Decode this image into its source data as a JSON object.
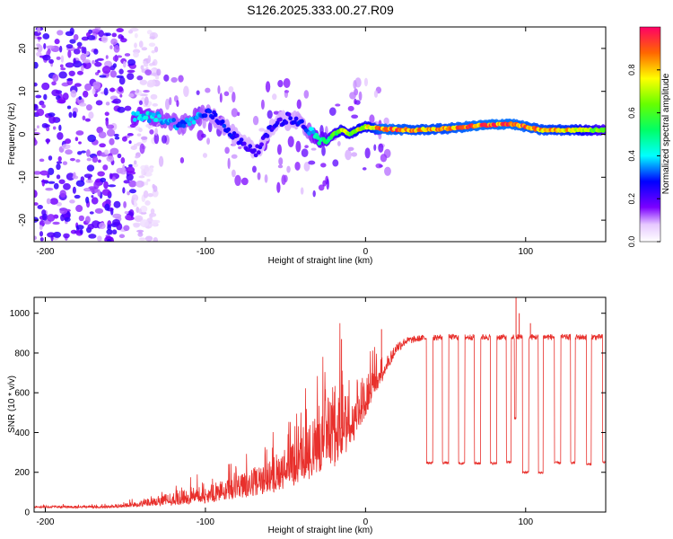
{
  "title": "S126.2025.333.00.27.R09",
  "chart_data": [
    {
      "id": "spectrogram",
      "type": "heatmap",
      "xlabel": "Height of straight line (km)",
      "ylabel": "Frequency (Hz)",
      "xlim": [
        -207,
        150
      ],
      "ylim": [
        -25,
        25
      ],
      "xticks": [
        -200,
        -100,
        0,
        100
      ],
      "yticks": [
        -20,
        -10,
        0,
        10,
        20
      ],
      "colorbar": {
        "label": "Normalized spectral amplitude",
        "range": [
          0,
          1
        ],
        "ticks": [
          0.0,
          0.2,
          0.4,
          0.6,
          0.8
        ],
        "tick_labels": [
          "0.0",
          "0.2",
          "0.4",
          "0.6",
          "0.8"
        ]
      },
      "ridge": {
        "x": [
          -145,
          -130,
          -115,
          -105,
          -97,
          -88,
          -78,
          -68,
          -58,
          -48,
          -38,
          -30,
          -25,
          -20,
          -15,
          -10,
          -5,
          0,
          10,
          30,
          50,
          70,
          90,
          110,
          130,
          150
        ],
        "freq": [
          4,
          4,
          2,
          4,
          5,
          2,
          -2,
          -4,
          2,
          4,
          2,
          -1,
          -2,
          0,
          1,
          0,
          1,
          1.8,
          1.2,
          1,
          1.3,
          2,
          2.5,
          1,
          1,
          1
        ],
        "amplitude": [
          0.45,
          0.4,
          0.35,
          0.4,
          0.3,
          0.3,
          0.25,
          0.25,
          0.25,
          0.25,
          0.3,
          0.5,
          0.55,
          0.6,
          0.75,
          0.7,
          0.8,
          0.75,
          0.95,
          0.9,
          0.9,
          0.95,
          0.95,
          0.9,
          0.85,
          0.6
        ]
      },
      "noise_region_x": [
        -207,
        -145
      ]
    },
    {
      "id": "snr",
      "type": "line",
      "xlabel": "Height of straight line (km)",
      "ylabel": "SNR (10 * v/v)",
      "xlim": [
        -207,
        150
      ],
      "ylim": [
        0,
        1080
      ],
      "xticks": [
        -200,
        -100,
        0,
        100
      ],
      "yticks": [
        0,
        200,
        400,
        600,
        800,
        1000
      ],
      "color": "#e8302c",
      "envelope": {
        "x": [
          -207,
          -160,
          -145,
          -120,
          -100,
          -80,
          -60,
          -40,
          -30,
          -20,
          -15,
          -10,
          -5,
          0,
          5,
          10,
          15,
          20,
          25,
          35,
          50,
          150
        ],
        "mean": [
          25,
          25,
          35,
          60,
          80,
          110,
          160,
          230,
          320,
          380,
          420,
          440,
          500,
          560,
          630,
          700,
          760,
          830,
          860,
          875,
          880,
          880
        ],
        "spread": [
          8,
          10,
          20,
          50,
          70,
          90,
          130,
          190,
          260,
          320,
          300,
          280,
          220,
          160,
          120,
          100,
          60,
          30,
          20,
          15,
          15,
          15
        ]
      },
      "dropouts": [
        {
          "x": [
            38,
            42
          ],
          "value": 248
        },
        {
          "x": [
            48,
            52
          ],
          "value": 248
        },
        {
          "x": [
            58,
            62
          ],
          "value": 245
        },
        {
          "x": [
            68,
            72
          ],
          "value": 245
        },
        {
          "x": [
            78,
            82
          ],
          "value": 245
        },
        {
          "x": [
            88,
            91
          ],
          "value": 250
        },
        {
          "x": [
            93,
            94
          ],
          "value": 470
        },
        {
          "x": [
            98,
            102
          ],
          "value": 200
        },
        {
          "x": [
            108,
            111
          ],
          "value": 198
        },
        {
          "x": [
            118,
            122
          ],
          "value": 248
        },
        {
          "x": [
            128,
            131
          ],
          "value": 248
        },
        {
          "x": [
            138,
            141
          ],
          "value": 240
        },
        {
          "x": [
            148,
            150
          ],
          "value": 250
        }
      ],
      "spikes": [
        {
          "x": 94,
          "value": 1080
        },
        {
          "x": 96,
          "value": 1000
        },
        {
          "x": 103,
          "value": 950
        },
        {
          "x": -15,
          "value": 870
        },
        {
          "x": 10,
          "value": 920
        }
      ]
    }
  ]
}
